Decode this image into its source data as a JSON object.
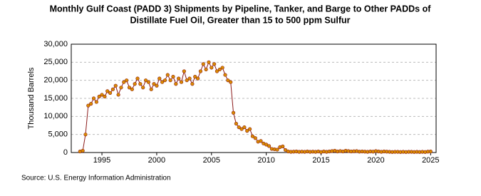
{
  "chart_data": {
    "type": "line",
    "title": "Monthly Gulf Coast (PADD 3) Shipments by Pipeline, Tanker, and Barge to Other PADDs of",
    "subtitle": "Distillate Fuel Oil, Greater than 15 to 500 ppm Sulfur",
    "y_label": "Thousand Barrels",
    "source": "Source: U.S. Energy Information Administration",
    "x": [
      1993,
      1993.25,
      1993.5,
      1993.75,
      1994,
      1994.25,
      1994.5,
      1994.75,
      1995,
      1995.25,
      1995.5,
      1995.75,
      1996,
      1996.25,
      1996.5,
      1996.75,
      1997,
      1997.25,
      1997.5,
      1997.75,
      1998,
      1998.25,
      1998.5,
      1998.75,
      1999,
      1999.25,
      1999.5,
      1999.75,
      2000,
      2000.25,
      2000.5,
      2000.75,
      2001,
      2001.25,
      2001.5,
      2001.75,
      2002,
      2002.25,
      2002.5,
      2002.75,
      2003,
      2003.25,
      2003.5,
      2003.75,
      2004,
      2004.25,
      2004.5,
      2004.75,
      2005,
      2005.25,
      2005.5,
      2005.75,
      2006,
      2006.25,
      2006.5,
      2006.75,
      2007,
      2007.25,
      2007.5,
      2007.75,
      2008,
      2008.25,
      2008.5,
      2008.75,
      2009,
      2009.25,
      2009.5,
      2009.75,
      2010,
      2010.25,
      2010.5,
      2010.75,
      2011,
      2011.25,
      2011.5,
      2011.75,
      2012,
      2012.25,
      2012.5,
      2012.75,
      2013,
      2013.25,
      2013.5,
      2013.75,
      2014,
      2014.25,
      2014.5,
      2014.75,
      2015,
      2015.25,
      2015.5,
      2015.75,
      2016,
      2016.25,
      2016.5,
      2016.75,
      2017,
      2017.25,
      2017.5,
      2017.75,
      2018,
      2018.25,
      2018.5,
      2018.75,
      2019,
      2019.25,
      2019.5,
      2019.75,
      2020,
      2020.25,
      2020.5,
      2020.75,
      2021,
      2021.25,
      2021.5,
      2021.75,
      2022,
      2022.25,
      2022.5,
      2022.75,
      2023,
      2023.25,
      2023.5,
      2023.75,
      2024,
      2024.25,
      2024.5,
      2024.75,
      2025
    ],
    "series": [
      {
        "name": "Shipments",
        "color": "#8b1a1a",
        "marker_color": "#d98c00",
        "values": [
          300,
          500,
          5000,
          13000,
          13500,
          15000,
          14000,
          15500,
          16000,
          15500,
          17000,
          16500,
          17500,
          18500,
          16000,
          18000,
          19500,
          20000,
          18000,
          17500,
          19000,
          20500,
          19000,
          18000,
          20000,
          19500,
          17500,
          19000,
          18500,
          20500,
          19500,
          20000,
          21500,
          20000,
          21000,
          19000,
          20500,
          19500,
          22500,
          20000,
          20500,
          19000,
          21000,
          20500,
          22500,
          24500,
          23000,
          25000,
          23500,
          24500,
          22500,
          23000,
          23500,
          21500,
          20000,
          19500,
          11000,
          8000,
          7000,
          6500,
          7000,
          6000,
          6500,
          4500,
          4000,
          3000,
          3200,
          2500,
          2200,
          1800,
          1000,
          900,
          800,
          1500,
          1700,
          700,
          300,
          200,
          250,
          300,
          200,
          250,
          200,
          300,
          200,
          250,
          200,
          300,
          150,
          300,
          200,
          300,
          400,
          500,
          300,
          400,
          300,
          500,
          400,
          300,
          350,
          400,
          250,
          300,
          250,
          200,
          300,
          250,
          400,
          300,
          200,
          300,
          250,
          200,
          150,
          200,
          200,
          150,
          200,
          150,
          200,
          200,
          150,
          200,
          150,
          200,
          150,
          250,
          300
        ]
      }
    ],
    "xlim": [
      1992.2,
      2025.5
    ],
    "ylim": [
      0,
      30000
    ],
    "xticks": [
      1995,
      2000,
      2005,
      2010,
      2015,
      2020,
      2025
    ],
    "yticks": [
      0,
      {
        "value": 5000,
        "label": "5,000"
      },
      {
        "value": 10000,
        "label": "10,000"
      },
      {
        "value": 15000,
        "label": "15,000"
      },
      {
        "value": 20000,
        "label": "20,000"
      },
      {
        "value": 25000,
        "label": "25,000"
      },
      {
        "value": 30000,
        "label": "30,000"
      }
    ],
    "grid": true
  }
}
